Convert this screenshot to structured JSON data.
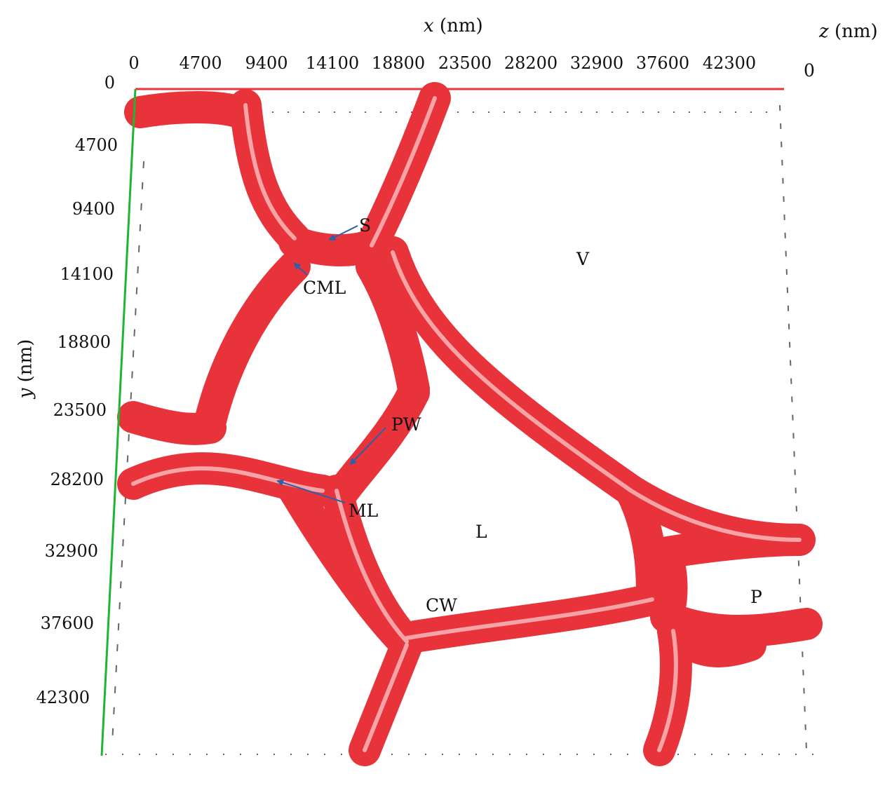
{
  "axes": {
    "x_title_var": "x",
    "x_title_unit": " (nm)",
    "y_title_var": "y",
    "y_title_unit": " (nm)",
    "z_title_var": "z",
    "z_title_unit": " (nm)",
    "x_ticks": [
      "0",
      "4700",
      "9400",
      "14100",
      "18800",
      "23500",
      "28200",
      "32900",
      "37600",
      "42300"
    ],
    "y_ticks": [
      "0",
      "4700",
      "9400",
      "14100",
      "18800",
      "23500",
      "28200",
      "32900",
      "37600",
      "42300"
    ],
    "z_tick": "0"
  },
  "labels": {
    "S": "S",
    "CML": "CML",
    "V": "V",
    "PW": "PW",
    "ML": "ML",
    "L": "L",
    "CW": "CW",
    "P": "P"
  },
  "colors": {
    "wall": "#e8333b",
    "wall_light": "#f7b0b3",
    "x_axis": "#e8333b",
    "y_axis": "#1fb535",
    "arrow": "#2f5fa8",
    "tick": "#555555"
  }
}
